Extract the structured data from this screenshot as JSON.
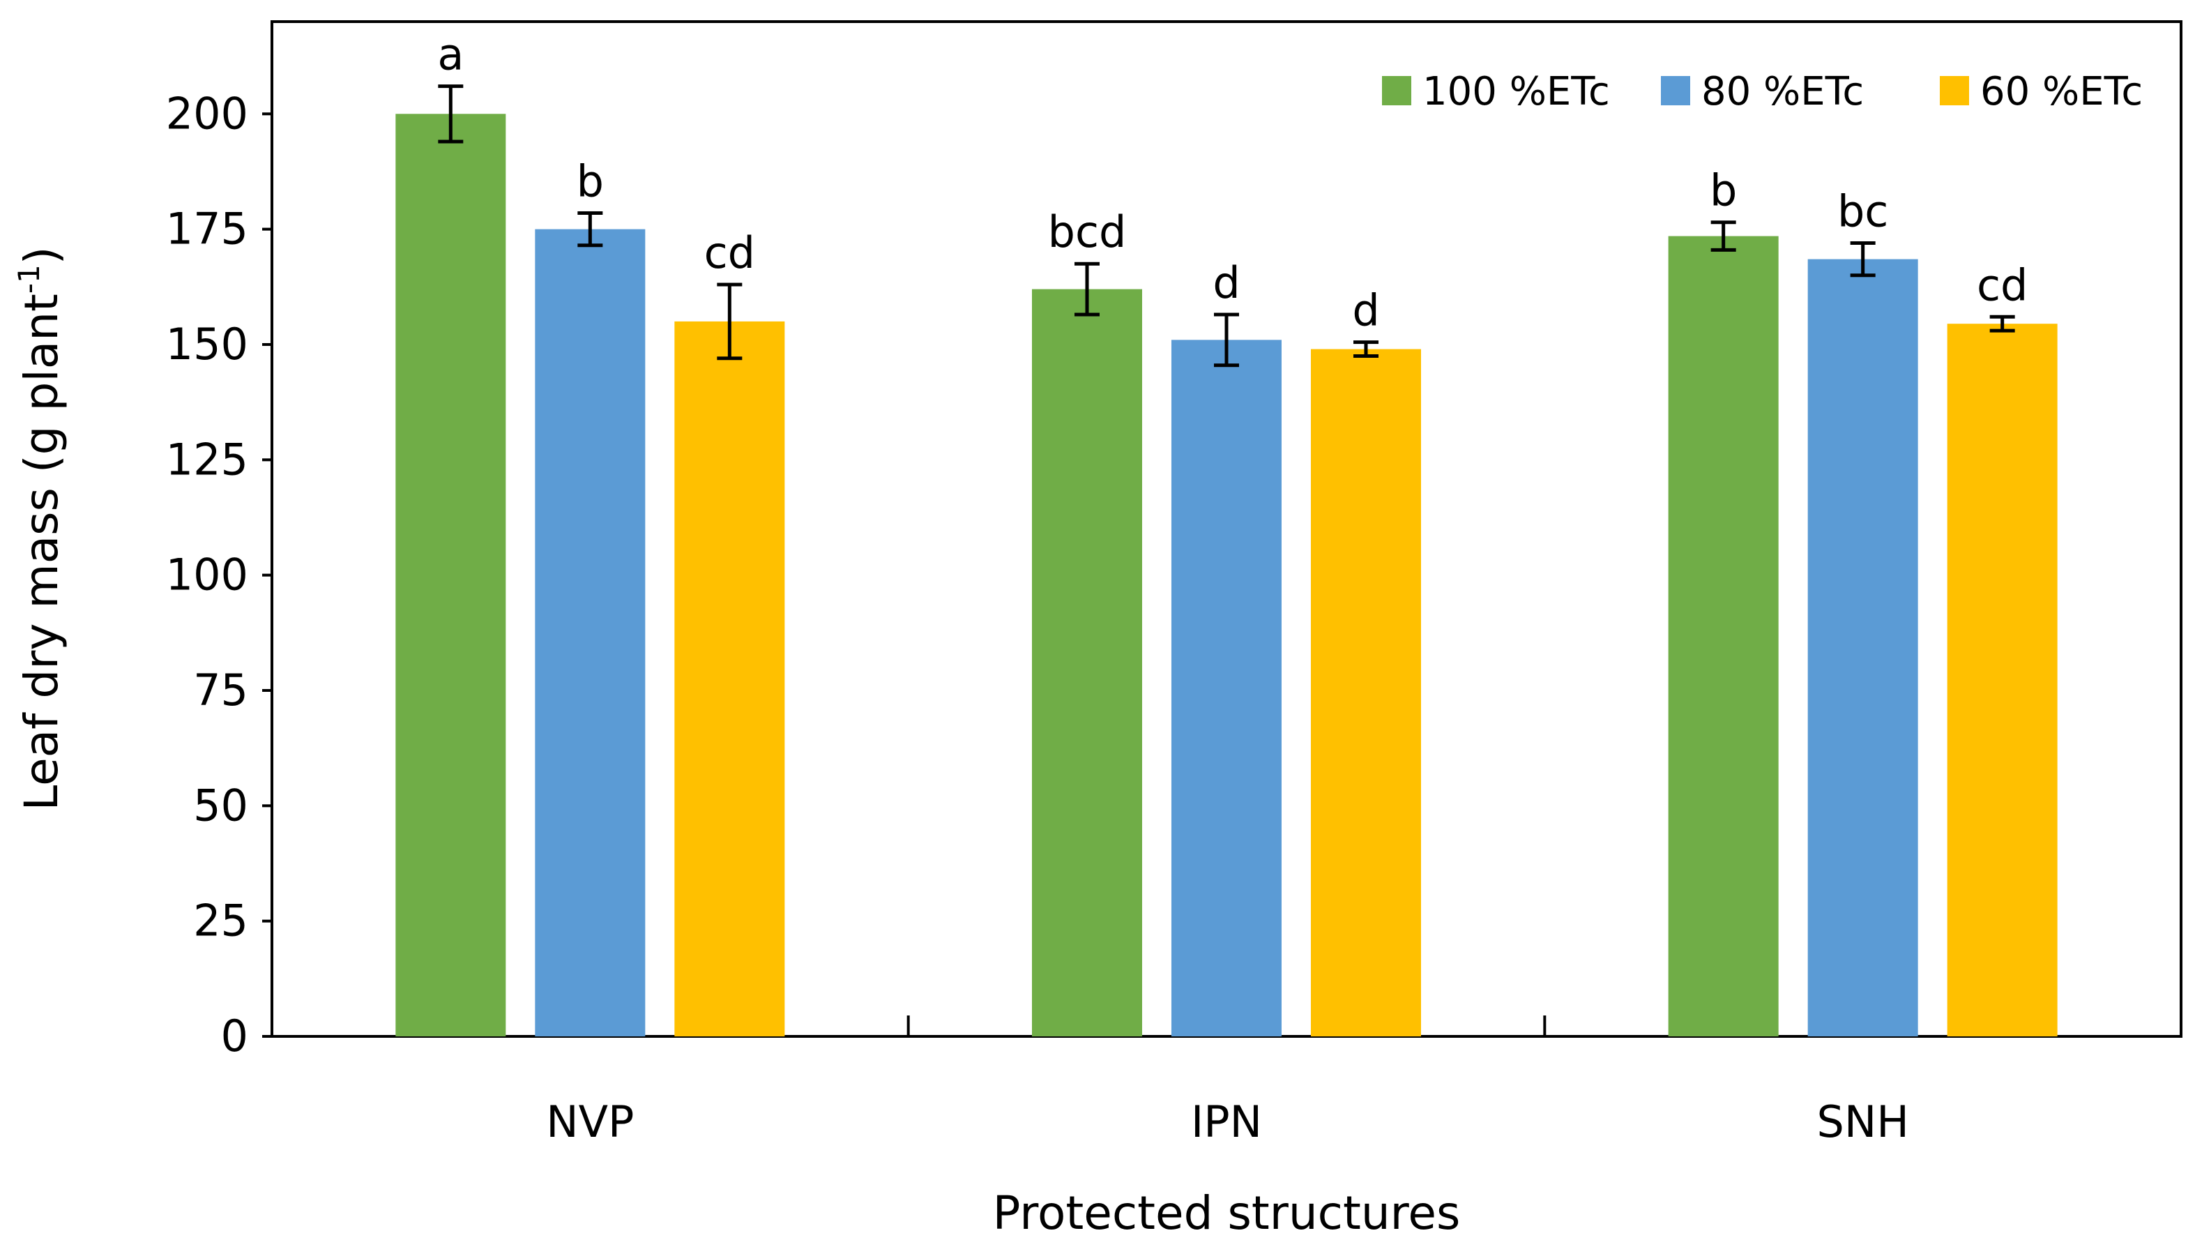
{
  "chart_data": {
    "type": "bar",
    "title": "",
    "xlabel": "Protected structures",
    "ylabel": "Leaf dry mass (g plant",
    "ylabel_superscript": "-1",
    "ylabel_suffix": ")",
    "ylim": [
      0,
      220
    ],
    "yticks": [
      0,
      25,
      50,
      75,
      100,
      125,
      150,
      175,
      200
    ],
    "grid": false,
    "legend_position": "top-right",
    "categories": [
      "NVP",
      "IPN",
      "SNH"
    ],
    "series": [
      {
        "name": "100 %ETc",
        "color": "#70AD47",
        "values": [
          200,
          162,
          173.5
        ],
        "errors": [
          6,
          5.5,
          3
        ],
        "labels": [
          "a",
          "bcd",
          "b"
        ]
      },
      {
        "name": "80 %ETc",
        "color": "#5B9BD5",
        "values": [
          175,
          151,
          168.5
        ],
        "errors": [
          3.5,
          5.5,
          3.5
        ],
        "labels": [
          "b",
          "d",
          "bc"
        ]
      },
      {
        "name": "60 %ETc",
        "color": "#FFC000",
        "values": [
          155,
          149,
          154.5
        ],
        "errors": [
          8,
          1.5,
          1.5
        ],
        "labels": [
          "cd",
          "d",
          "cd"
        ]
      }
    ]
  }
}
